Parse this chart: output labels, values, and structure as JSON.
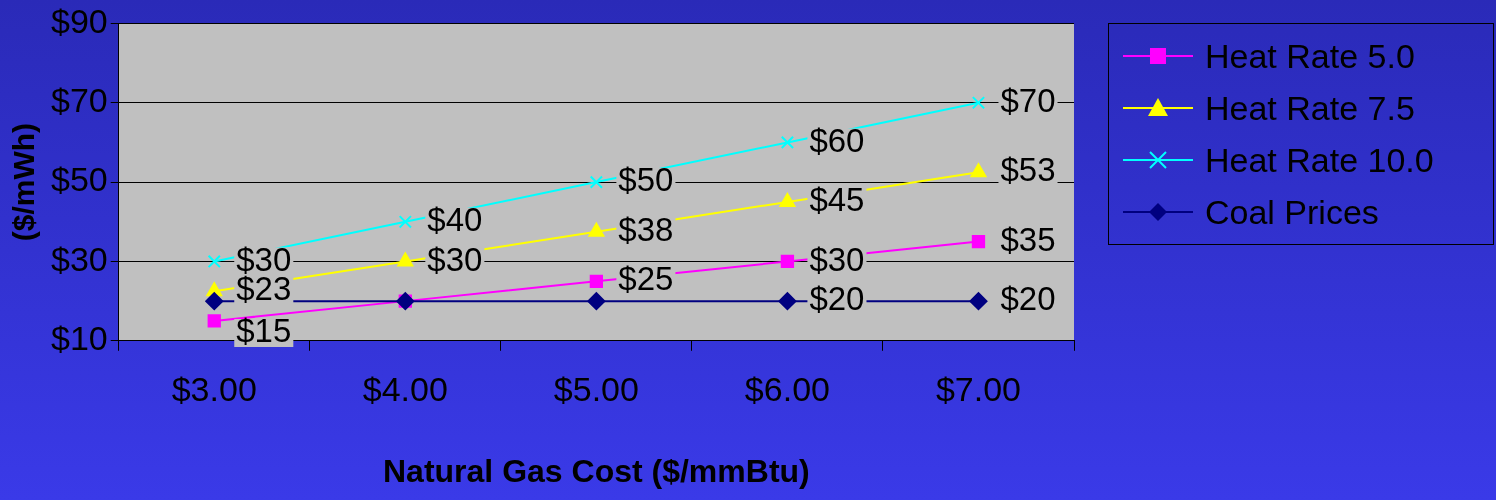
{
  "chart_data": {
    "type": "line",
    "xlabel": "Natural Gas Cost ($/mmBtu)",
    "ylabel": "($/mWh)",
    "categories": [
      "$3.00",
      "$4.00",
      "$5.00",
      "$6.00",
      "$7.00"
    ],
    "series": [
      {
        "name": "Heat Rate 5.0",
        "color": "#ff00ff",
        "marker": "square",
        "values": [
          15,
          20,
          25,
          30,
          35
        ],
        "value_labels": [
          "$15",
          null,
          "$25",
          "$30",
          "$35"
        ]
      },
      {
        "name": "Heat Rate 7.5",
        "color": "#ffff00",
        "marker": "triangle",
        "values": [
          22.5,
          30,
          37.5,
          45,
          52.5
        ],
        "value_labels": [
          "$23",
          "$30",
          "$38",
          "$45",
          "$53"
        ]
      },
      {
        "name": "Heat Rate 10.0",
        "color": "#00ffff",
        "marker": "cross",
        "values": [
          30,
          40,
          50,
          60,
          70
        ],
        "value_labels": [
          "$30",
          "$40",
          "$50",
          "$60",
          "$70"
        ]
      },
      {
        "name": "Coal Prices",
        "color": "#000080",
        "marker": "diamond",
        "values": [
          20,
          20,
          20,
          20,
          20
        ],
        "value_labels": [
          null,
          null,
          null,
          "$20",
          "$20"
        ]
      }
    ],
    "ylim": [
      10,
      90
    ],
    "yticks": [
      {
        "value": 10,
        "label": "$10"
      },
      {
        "value": 30,
        "label": "$30"
      },
      {
        "value": 50,
        "label": "$50"
      },
      {
        "value": 70,
        "label": "$70"
      },
      {
        "value": 90,
        "label": "$90"
      }
    ],
    "grid": "y",
    "legend": "right",
    "line_style": "solid"
  }
}
